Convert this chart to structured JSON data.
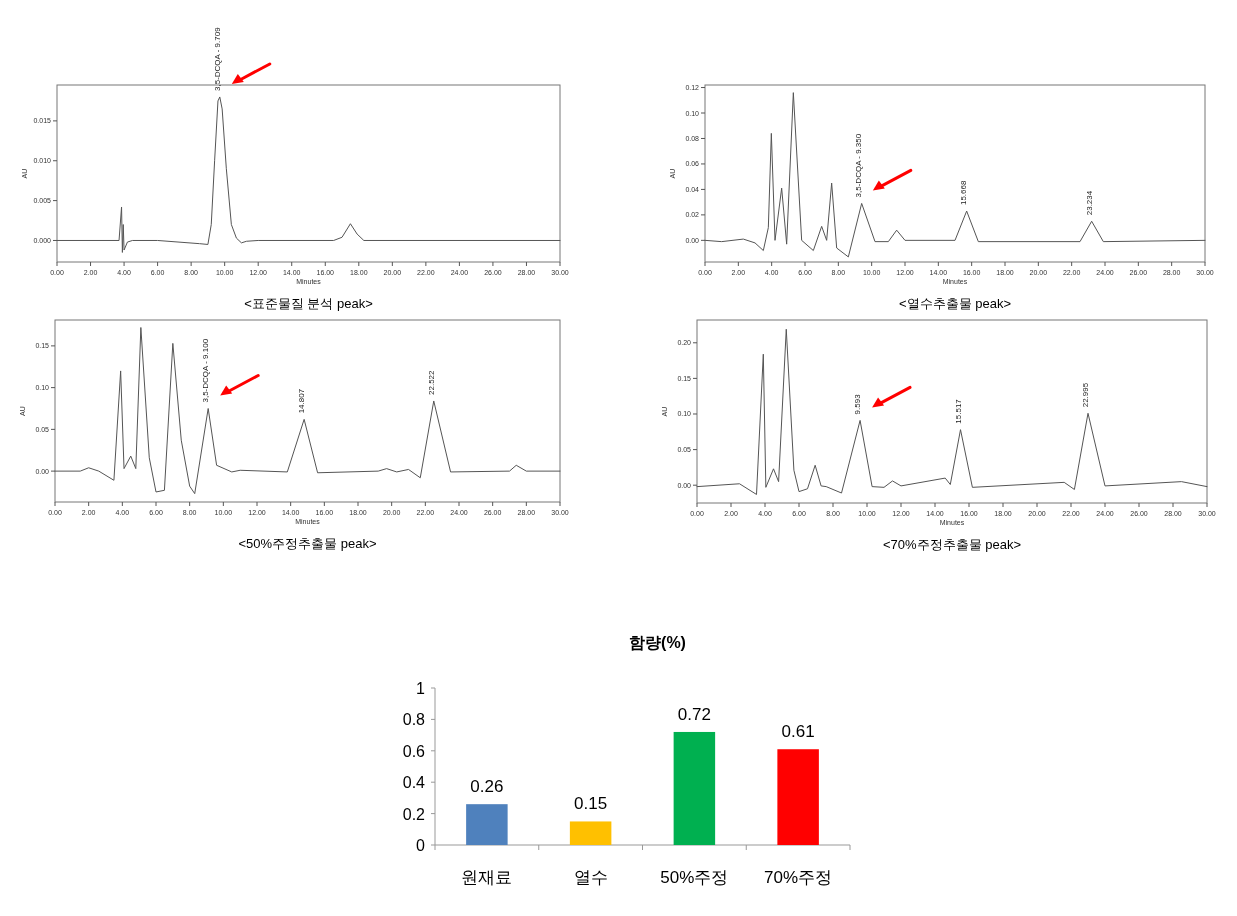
{
  "chart_data": [
    {
      "type": "line",
      "title": "<표준물질 분석 peak>",
      "xlabel": "Minutes",
      "ylabel": "AU",
      "xlim": [
        0,
        30
      ],
      "ylim": [
        -0.0027,
        0.0195
      ],
      "xticks": [
        {
          "value": 0,
          "label": "0.00"
        },
        {
          "value": 2,
          "label": "2.00"
        },
        {
          "value": 4,
          "label": "4.00"
        },
        {
          "value": 6,
          "label": "6.00"
        },
        {
          "value": 8,
          "label": "8.00"
        },
        {
          "value": 10,
          "label": "10.00"
        },
        {
          "value": 12,
          "label": "12.00"
        },
        {
          "value": 14,
          "label": "14.00"
        },
        {
          "value": 16,
          "label": "16.00"
        },
        {
          "value": 18,
          "label": "18.00"
        },
        {
          "value": 20,
          "label": "20.00"
        },
        {
          "value": 22,
          "label": "22.00"
        },
        {
          "value": 24,
          "label": "24.00"
        },
        {
          "value": 26,
          "label": "26.00"
        },
        {
          "value": 28,
          "label": "28.00"
        },
        {
          "value": 30,
          "label": "30.00"
        }
      ],
      "yticks": [
        {
          "value": 0,
          "label": "0.000"
        },
        {
          "value": 0.005,
          "label": "0.005"
        },
        {
          "value": 0.01,
          "label": "0.010"
        },
        {
          "value": 0.015,
          "label": "0.015"
        }
      ],
      "x": [
        0,
        3.7,
        3.85,
        3.9,
        3.95,
        4.0,
        4.2,
        4.5,
        6,
        8.5,
        9.0,
        9.2,
        9.4,
        9.6,
        9.709,
        9.85,
        10.1,
        10.4,
        10.7,
        11.0,
        11.3,
        12,
        16.5,
        17.0,
        17.5,
        17.9,
        18.3,
        30
      ],
      "values": [
        0,
        0,
        0.0042,
        -0.0015,
        0.002,
        -0.0012,
        -0.0002,
        0,
        0,
        -0.0004,
        -0.0005,
        0.002,
        0.01,
        0.0175,
        0.018,
        0.0165,
        0.009,
        0.002,
        0.0003,
        -0.0003,
        -0.0001,
        0,
        0,
        0.0004,
        0.0021,
        0.0008,
        0,
        0
      ],
      "annotations": [
        {
          "text": "3,5-DCQA - 9.709",
          "x": 9.709,
          "y": 0.018
        }
      ]
    },
    {
      "type": "line",
      "title": "<열수추출물 peak>",
      "xlabel": "Minutes",
      "ylabel": "AU",
      "xlim": [
        0,
        30
      ],
      "ylim": [
        -0.017,
        0.122
      ],
      "xticks": [
        {
          "value": 0,
          "label": "0.00"
        },
        {
          "value": 2,
          "label": "2.00"
        },
        {
          "value": 4,
          "label": "4.00"
        },
        {
          "value": 6,
          "label": "6.00"
        },
        {
          "value": 8,
          "label": "8.00"
        },
        {
          "value": 10,
          "label": "10.00"
        },
        {
          "value": 12,
          "label": "12.00"
        },
        {
          "value": 14,
          "label": "14.00"
        },
        {
          "value": 16,
          "label": "16.00"
        },
        {
          "value": 18,
          "label": "18.00"
        },
        {
          "value": 20,
          "label": "20.00"
        },
        {
          "value": 22,
          "label": "22.00"
        },
        {
          "value": 24,
          "label": "24.00"
        },
        {
          "value": 26,
          "label": "26.00"
        },
        {
          "value": 28,
          "label": "28.00"
        },
        {
          "value": 30,
          "label": "30.00"
        }
      ],
      "yticks": [
        {
          "value": 0,
          "label": "0.00"
        },
        {
          "value": 0.02,
          "label": "0.02"
        },
        {
          "value": 0.04,
          "label": "0.04"
        },
        {
          "value": 0.06,
          "label": "0.06"
        },
        {
          "value": 0.08,
          "label": "0.08"
        },
        {
          "value": 0.1,
          "label": "0.10"
        },
        {
          "value": 0.12,
          "label": "0.12"
        }
      ],
      "x": [
        0,
        1,
        2.3,
        3.0,
        3.5,
        3.8,
        3.98,
        4.2,
        4.6,
        4.9,
        5.3,
        5.8,
        6.5,
        7.0,
        7.3,
        7.6,
        7.9,
        8.6,
        9.4,
        10.2,
        11.0,
        11.5,
        12.0,
        15.0,
        15.7,
        16.4,
        22.5,
        23.2,
        23.9,
        30
      ],
      "values": [
        0,
        -0.001,
        0.001,
        -0.002,
        -0.008,
        0.01,
        0.084,
        0,
        0.041,
        -0.003,
        0.116,
        0,
        -0.008,
        0.011,
        0,
        0.045,
        -0.006,
        -0.013,
        0.029,
        -0.001,
        -0.001,
        0.008,
        0,
        0,
        0.023,
        -0.001,
        -0.001,
        0.015,
        -0.001,
        0
      ],
      "annotations": [
        {
          "text": "3,5-DCQA - 9.350",
          "x": 9.35,
          "y": 0.029
        },
        {
          "text": "15.668",
          "x": 15.668,
          "y": 0.023
        },
        {
          "text": "23.234",
          "x": 23.234,
          "y": 0.015
        }
      ]
    },
    {
      "type": "line",
      "title": "<50%주정추출물 peak>",
      "xlabel": "Minutes",
      "ylabel": "AU",
      "xlim": [
        0,
        30
      ],
      "ylim": [
        -0.037,
        0.181
      ],
      "xticks": [
        {
          "value": 0,
          "label": "0.00"
        },
        {
          "value": 2,
          "label": "2.00"
        },
        {
          "value": 4,
          "label": "4.00"
        },
        {
          "value": 6,
          "label": "6.00"
        },
        {
          "value": 8,
          "label": "8.00"
        },
        {
          "value": 10,
          "label": "10.00"
        },
        {
          "value": 12,
          "label": "12.00"
        },
        {
          "value": 14,
          "label": "14.00"
        },
        {
          "value": 16,
          "label": "16.00"
        },
        {
          "value": 18,
          "label": "18.00"
        },
        {
          "value": 20,
          "label": "20.00"
        },
        {
          "value": 22,
          "label": "22.00"
        },
        {
          "value": 24,
          "label": "24.00"
        },
        {
          "value": 26,
          "label": "26.00"
        },
        {
          "value": 28,
          "label": "28.00"
        },
        {
          "value": 30,
          "label": "30.00"
        }
      ],
      "yticks": [
        {
          "value": 0,
          "label": "0.00"
        },
        {
          "value": 0.05,
          "label": "0.05"
        },
        {
          "value": 0.1,
          "label": "0.10"
        },
        {
          "value": 0.15,
          "label": "0.15"
        }
      ],
      "x": [
        0,
        1.5,
        2.0,
        2.6,
        3.5,
        3.9,
        4.1,
        4.5,
        4.8,
        5.1,
        5.6,
        6.0,
        6.5,
        7.0,
        7.5,
        8.0,
        8.3,
        9.1,
        9.6,
        10.5,
        11.0,
        13.8,
        14.8,
        15.6,
        19.2,
        19.7,
        20.3,
        21.0,
        21.7,
        22.5,
        23.5,
        27.0,
        27.4,
        28.0,
        30
      ],
      "values": [
        0,
        0,
        0.004,
        0,
        -0.011,
        0.12,
        0.003,
        0.018,
        0.003,
        0.172,
        0.016,
        -0.025,
        -0.023,
        0.153,
        0.037,
        -0.018,
        -0.027,
        0.075,
        0.007,
        -0.001,
        0.001,
        -0.001,
        0.062,
        -0.002,
        0,
        0.003,
        -0.001,
        0.002,
        -0.008,
        0.084,
        -0.001,
        0,
        0.007,
        0,
        0
      ],
      "annotations": [
        {
          "text": "3,5-DCQA - 9.100",
          "x": 9.1,
          "y": 0.075
        },
        {
          "text": "14.807",
          "x": 14.807,
          "y": 0.062
        },
        {
          "text": "22.522",
          "x": 22.522,
          "y": 0.084
        }
      ]
    },
    {
      "type": "line",
      "title": "<70%주정추출물 peak>",
      "xlabel": "Minutes",
      "ylabel": "AU",
      "xlim": [
        0,
        30
      ],
      "ylim": [
        -0.025,
        0.232
      ],
      "xticks": [
        {
          "value": 0,
          "label": "0.00"
        },
        {
          "value": 2,
          "label": "2.00"
        },
        {
          "value": 4,
          "label": "4.00"
        },
        {
          "value": 6,
          "label": "6.00"
        },
        {
          "value": 8,
          "label": "8.00"
        },
        {
          "value": 10,
          "label": "10.00"
        },
        {
          "value": 12,
          "label": "12.00"
        },
        {
          "value": 14,
          "label": "14.00"
        },
        {
          "value": 16,
          "label": "16.00"
        },
        {
          "value": 18,
          "label": "18.00"
        },
        {
          "value": 20,
          "label": "20.00"
        },
        {
          "value": 22,
          "label": "22.00"
        },
        {
          "value": 24,
          "label": "24.00"
        },
        {
          "value": 26,
          "label": "26.00"
        },
        {
          "value": 28,
          "label": "28.00"
        },
        {
          "value": 30,
          "label": "30.00"
        }
      ],
      "yticks": [
        {
          "value": 0,
          "label": "0.00"
        },
        {
          "value": 0.05,
          "label": "0.05"
        },
        {
          "value": 0.1,
          "label": "0.10"
        },
        {
          "value": 0.15,
          "label": "0.15"
        },
        {
          "value": 0.2,
          "label": "0.20"
        }
      ],
      "x": [
        0,
        2.5,
        3.5,
        3.9,
        4.05,
        4.5,
        4.8,
        5.25,
        5.7,
        6.0,
        6.5,
        6.95,
        7.3,
        7.6,
        8.5,
        9.593,
        10.3,
        11.0,
        11.5,
        12.0,
        14.6,
        14.9,
        15.5,
        16.2,
        21.6,
        22.2,
        23.0,
        24.0,
        28.5,
        30
      ],
      "values": [
        -0.002,
        0.002,
        -0.013,
        0.184,
        -0.003,
        0.023,
        0.005,
        0.219,
        0.021,
        -0.009,
        -0.005,
        0.028,
        -0.001,
        -0.002,
        -0.011,
        0.091,
        -0.002,
        -0.003,
        0.006,
        -0.001,
        0.01,
        0.001,
        0.078,
        -0.003,
        0.004,
        -0.006,
        0.101,
        -0.001,
        0.005,
        -0.002
      ],
      "annotations": [
        {
          "text": "9.593",
          "x": 9.593,
          "y": 0.091
        },
        {
          "text": "15.517",
          "x": 15.517,
          "y": 0.078
        },
        {
          "text": "22.995",
          "x": 22.995,
          "y": 0.101
        }
      ]
    },
    {
      "type": "bar",
      "title": "함량(%)",
      "categories": [
        "원재료",
        "열수",
        "50%주정",
        "70%주정"
      ],
      "values": [
        0.26,
        0.15,
        0.72,
        0.61
      ],
      "colors": [
        "#4f81bd",
        "#ffc000",
        "#00b050",
        "#ff0000"
      ],
      "ylim": [
        0,
        1
      ],
      "yticks": [
        0,
        0.2,
        0.4,
        0.6,
        0.8,
        1
      ],
      "data_labels": true
    }
  ]
}
